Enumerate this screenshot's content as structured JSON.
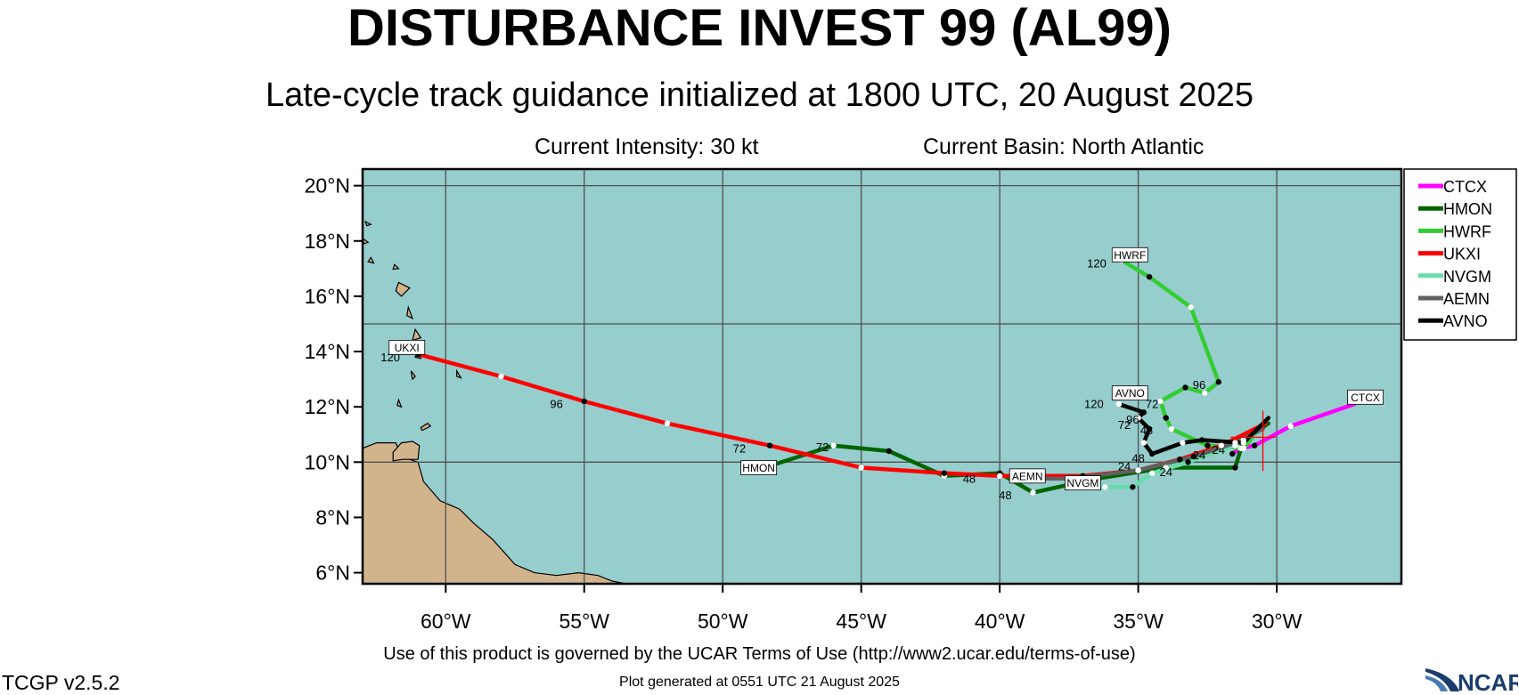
{
  "title": "DISTURBANCE INVEST 99 (AL99)",
  "subtitle": "Late-cycle track guidance initialized at 1800 UTC, 20 August 2025",
  "current_intensity": "Current Intensity: 30 kt",
  "current_basin": "Current Basin: North Atlantic",
  "terms": "Use of this product is governed by the UCAR Terms of Use (http://www2.ucar.edu/terms-of-use)",
  "version": "TCGP v2.5.2",
  "generated": "Plot generated at 0551 UTC   21 August 2025",
  "logo_text": "NCAR",
  "colors": {
    "ocean": "#96cdcd",
    "land": "#d2b48c",
    "grid": "#505050",
    "CTCX": "#ff00ff",
    "HMON": "#006400",
    "HWRF": "#32cd32",
    "UKXI": "#ff0000",
    "NVGM": "#66ddaa",
    "AEMN": "#606060",
    "AVNO": "#000000",
    "initial_position": "#ff0000"
  },
  "chart_data": {
    "type": "map-tracks",
    "lon_range": [
      -63,
      -25.5
    ],
    "lat_range": [
      5.6,
      20.6
    ],
    "lon_ticks": [
      {
        "value": -60,
        "label": "60°W"
      },
      {
        "value": -55,
        "label": "55°W"
      },
      {
        "value": -50,
        "label": "50°W"
      },
      {
        "value": -45,
        "label": "45°W"
      },
      {
        "value": -40,
        "label": "40°W"
      },
      {
        "value": -35,
        "label": "35°W"
      },
      {
        "value": -30,
        "label": "30°W"
      }
    ],
    "lat_ticks": [
      {
        "value": 20,
        "label": "20°N"
      },
      {
        "value": 18,
        "label": "18°N"
      },
      {
        "value": 16,
        "label": "16°N"
      },
      {
        "value": 14,
        "label": "14°N"
      },
      {
        "value": 12,
        "label": "12°N"
      },
      {
        "value": 10,
        "label": "10°N"
      },
      {
        "value": 8,
        "label": "8°N"
      },
      {
        "value": 6,
        "label": "6°N"
      }
    ],
    "grid_lon": [
      -60,
      -55,
      -50,
      -45,
      -40,
      -35,
      -30
    ],
    "grid_lat": [
      20,
      15,
      10
    ],
    "grid": true,
    "legend_position": "right",
    "initial_position": {
      "lon": -30.5,
      "lat": 10.9
    },
    "land": {
      "south_america": [
        [
          -63,
          10.5
        ],
        [
          -62.5,
          10.7
        ],
        [
          -61.8,
          10.7
        ],
        [
          -61.6,
          10.2
        ],
        [
          -61.0,
          10.0
        ],
        [
          -60.8,
          9.3
        ],
        [
          -60.2,
          8.6
        ],
        [
          -59.5,
          8.3
        ],
        [
          -59.0,
          7.8
        ],
        [
          -58.3,
          7.2
        ],
        [
          -57.5,
          6.3
        ],
        [
          -56.8,
          6.0
        ],
        [
          -56.0,
          5.9
        ],
        [
          -55.2,
          6.0
        ],
        [
          -54.5,
          5.9
        ],
        [
          -54.0,
          5.7
        ],
        [
          -53.5,
          5.6
        ],
        [
          -63,
          5.6
        ]
      ],
      "trinidad": [
        [
          -61.9,
          10.05
        ],
        [
          -61.55,
          10.1
        ],
        [
          -61.0,
          10.1
        ],
        [
          -60.95,
          10.6
        ],
        [
          -61.2,
          10.75
        ],
        [
          -61.6,
          10.7
        ],
        [
          -61.9,
          10.35
        ]
      ],
      "tobago": [
        [
          -60.85,
          11.15
        ],
        [
          -60.55,
          11.3
        ],
        [
          -60.65,
          11.4
        ],
        [
          -60.9,
          11.25
        ]
      ],
      "islands": [
        [
          [
            -61.1,
            14.8
          ],
          [
            -61.2,
            14.4
          ],
          [
            -60.9,
            14.5
          ]
        ],
        [
          [
            -61.0,
            14.1
          ],
          [
            -60.9,
            13.75
          ],
          [
            -61.1,
            13.8
          ]
        ],
        [
          [
            -61.25,
            13.3
          ],
          [
            -61.1,
            13.1
          ],
          [
            -61.2,
            13.0
          ]
        ],
        [
          [
            -59.6,
            13.3
          ],
          [
            -59.45,
            13.05
          ],
          [
            -59.6,
            13.1
          ]
        ],
        [
          [
            -61.7,
            12.25
          ],
          [
            -61.6,
            12.0
          ],
          [
            -61.75,
            12.05
          ]
        ],
        [
          [
            -61.35,
            15.6
          ],
          [
            -61.2,
            15.2
          ],
          [
            -61.4,
            15.3
          ]
        ],
        [
          [
            -61.7,
            16.5
          ],
          [
            -61.3,
            16.3
          ],
          [
            -61.6,
            16.0
          ],
          [
            -61.8,
            16.2
          ]
        ],
        [
          [
            -61.85,
            17.15
          ],
          [
            -61.7,
            17.0
          ],
          [
            -61.9,
            16.98
          ]
        ],
        [
          [
            -62.7,
            17.4
          ],
          [
            -62.6,
            17.2
          ],
          [
            -62.8,
            17.25
          ]
        ],
        [
          [
            -63.0,
            18.1
          ],
          [
            -62.8,
            17.95
          ],
          [
            -62.95,
            17.9
          ]
        ],
        [
          [
            -62.9,
            18.7
          ],
          [
            -62.7,
            18.6
          ],
          [
            -62.85,
            18.55
          ]
        ]
      ]
    },
    "series": [
      {
        "name": "CTCX",
        "points": [
          [
            -27.2,
            12.1
          ],
          [
            -29.5,
            11.3
          ],
          [
            -30.8,
            10.6
          ],
          [
            -31.3,
            10.5
          ],
          [
            -31.6,
            10.3
          ]
        ],
        "labels": [
          {
            "text": "24",
            "lon": -32.1,
            "lat": 10.3
          }
        ],
        "tag": {
          "text": "CTCX",
          "lon": -26.8,
          "lat": 12.35
        }
      },
      {
        "name": "HMON",
        "points": [
          [
            -30.3,
            11.4
          ],
          [
            -31.2,
            10.8
          ],
          [
            -31.5,
            9.8
          ],
          [
            -34.0,
            9.8
          ],
          [
            -36.5,
            9.4
          ],
          [
            -38.8,
            8.9
          ],
          [
            -40.0,
            9.6
          ],
          [
            -42.0,
            9.5
          ],
          [
            -44.0,
            10.4
          ],
          [
            -46.0,
            10.6
          ],
          [
            -48.5,
            9.8
          ]
        ],
        "labels": [
          {
            "text": "24",
            "lon": -32.8,
            "lat": 10.1
          },
          {
            "text": "48",
            "lon": -41.1,
            "lat": 9.25
          },
          {
            "text": "72",
            "lon": -46.4,
            "lat": 10.4
          }
        ],
        "tag": {
          "text": "HMON",
          "lon": -48.7,
          "lat": 9.8
        }
      },
      {
        "name": "HWRF",
        "points": [
          [
            -30.8,
            11.0
          ],
          [
            -31.2,
            10.5
          ],
          [
            -32.5,
            10.6
          ],
          [
            -33.8,
            11.2
          ],
          [
            -34.0,
            11.6
          ],
          [
            -34.2,
            12.2
          ],
          [
            -33.3,
            12.7
          ],
          [
            -32.6,
            12.5
          ],
          [
            -32.1,
            12.9
          ],
          [
            -33.1,
            15.6
          ],
          [
            -34.6,
            16.7
          ],
          [
            -35.6,
            17.3
          ]
        ],
        "labels": [
          {
            "text": "96",
            "lon": -32.8,
            "lat": 12.65
          },
          {
            "text": "120",
            "lon": -36.5,
            "lat": 17.05
          }
        ],
        "tag": {
          "text": "HWRF",
          "lon": -35.3,
          "lat": 17.5
        }
      },
      {
        "name": "UKXI",
        "points": [
          [
            -30.4,
            11.4
          ],
          [
            -32.0,
            10.6
          ],
          [
            -33.5,
            10.1
          ],
          [
            -35.0,
            9.7
          ],
          [
            -37.0,
            9.5
          ],
          [
            -40.0,
            9.5
          ],
          [
            -42.0,
            9.6
          ],
          [
            -45.0,
            9.8
          ],
          [
            -48.3,
            10.6
          ],
          [
            -52.0,
            11.4
          ],
          [
            -55.0,
            12.2
          ],
          [
            -58.0,
            13.1
          ],
          [
            -61.0,
            13.9
          ]
        ],
        "labels": [
          {
            "text": "72",
            "lon": -49.4,
            "lat": 10.35
          },
          {
            "text": "96",
            "lon": -56.0,
            "lat": 11.95
          },
          {
            "text": "120",
            "lon": -62.0,
            "lat": 13.65
          }
        ],
        "tag": {
          "text": "UKXI",
          "lon": -61.4,
          "lat": 14.15
        }
      },
      {
        "name": "NVGM",
        "points": [
          [
            -30.6,
            11.1
          ],
          [
            -31.5,
            10.6
          ],
          [
            -33.2,
            10.0
          ],
          [
            -34.5,
            9.6
          ],
          [
            -35.2,
            9.1
          ],
          [
            -36.2,
            9.1
          ],
          [
            -37.2,
            9.2
          ]
        ],
        "labels": [
          {
            "text": "24",
            "lon": -34.0,
            "lat": 9.5
          }
        ],
        "tag": {
          "text": "NVGM",
          "lon": -37.0,
          "lat": 9.25
        }
      },
      {
        "name": "AEMN",
        "points": [
          [
            -30.5,
            11.2
          ],
          [
            -31.5,
            10.7
          ],
          [
            -33.0,
            10.2
          ],
          [
            -35.0,
            9.7
          ],
          [
            -37.5,
            9.4
          ],
          [
            -39.5,
            9.4
          ]
        ],
        "labels": [
          {
            "text": "24",
            "lon": -35.5,
            "lat": 9.7
          },
          {
            "text": "48",
            "lon": -39.8,
            "lat": 8.65
          }
        ],
        "tag": {
          "text": "AEMN",
          "lon": -39.0,
          "lat": 9.5
        }
      },
      {
        "name": "AVNO",
        "points": [
          [
            -30.3,
            11.6
          ],
          [
            -31.2,
            10.7
          ],
          [
            -32.7,
            10.8
          ],
          [
            -33.4,
            10.7
          ],
          [
            -34.5,
            10.3
          ],
          [
            -34.8,
            10.7
          ],
          [
            -34.6,
            11.2
          ],
          [
            -35.0,
            11.6
          ],
          [
            -34.8,
            11.8
          ],
          [
            -35.7,
            12.1
          ]
        ],
        "labels": [
          {
            "text": "48",
            "lon": -35.0,
            "lat": 10.0
          },
          {
            "text": "72",
            "lon": -34.5,
            "lat": 11.95
          },
          {
            "text": "72",
            "lon": -35.5,
            "lat": 11.2
          },
          {
            "text": "96",
            "lon": -35.2,
            "lat": 11.4
          },
          {
            "text": "48",
            "lon": -34.7,
            "lat": 11.0
          },
          {
            "text": "120",
            "lon": -36.6,
            "lat": 11.95
          }
        ],
        "tag": {
          "text": "AVNO",
          "lon": -35.3,
          "lat": 12.5
        }
      }
    ]
  }
}
